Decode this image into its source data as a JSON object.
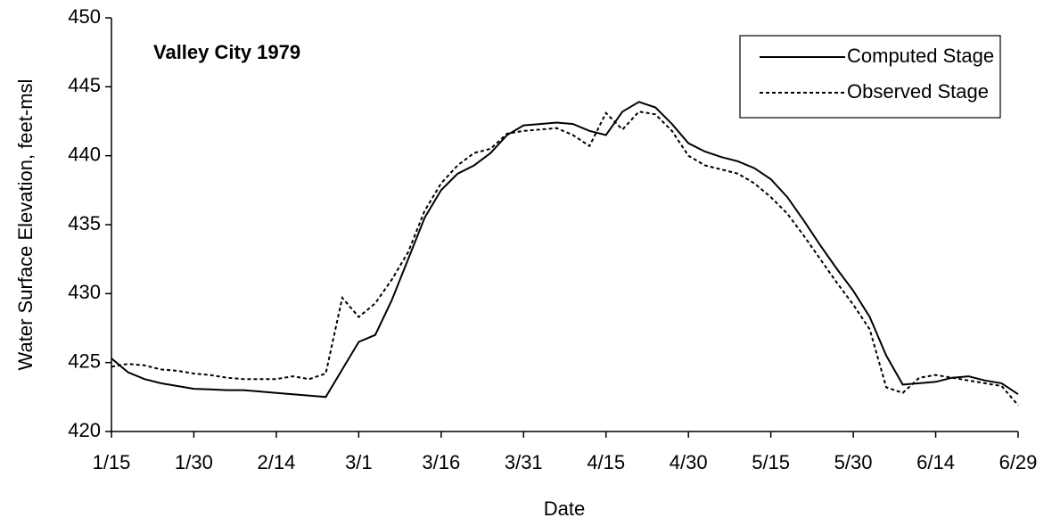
{
  "chart_data": {
    "type": "line",
    "title": "Valley City 1979",
    "x_label": "Date",
    "y_label": "Water Surface Elevation, feet-msl",
    "categories": [
      "1/15",
      null,
      null,
      null,
      null,
      "1/30",
      null,
      null,
      null,
      null,
      "2/14",
      null,
      null,
      null,
      null,
      "3/1",
      null,
      null,
      null,
      null,
      "3/16",
      null,
      null,
      null,
      null,
      "3/31",
      null,
      null,
      null,
      null,
      "4/15",
      null,
      null,
      null,
      null,
      "4/30",
      null,
      null,
      null,
      null,
      "5/15",
      null,
      null,
      null,
      null,
      "5/30",
      null,
      null,
      null,
      null,
      "6/14",
      null,
      null,
      null,
      null,
      "6/29"
    ],
    "series": [
      {
        "name": "Computed Stage",
        "color": "#000000",
        "dash": false,
        "values": [
          425.3,
          424.3,
          423.8,
          423.5,
          423.3,
          423.1,
          423.05,
          423.0,
          423.0,
          422.9,
          422.8,
          422.7,
          422.6,
          422.5,
          424.5,
          426.5,
          427.0,
          429.5,
          432.5,
          435.5,
          437.5,
          438.7,
          439.3,
          440.2,
          441.5,
          442.2,
          442.3,
          442.4,
          442.3,
          441.8,
          441.5,
          443.2,
          443.9,
          443.5,
          442.3,
          440.9,
          440.3,
          439.9,
          439.6,
          439.1,
          438.3,
          437.0,
          435.3,
          433.5,
          431.8,
          430.2,
          428.3,
          425.5,
          423.4,
          423.5,
          423.6,
          423.9,
          424.0,
          423.7,
          423.5,
          422.7
        ]
      },
      {
        "name": "Observed Stage",
        "color": "#000000",
        "dash": true,
        "values": [
          424.7,
          424.9,
          424.8,
          424.5,
          424.4,
          424.2,
          424.1,
          423.9,
          423.8,
          423.8,
          423.8,
          424.0,
          423.8,
          424.2,
          429.7,
          428.3,
          429.3,
          431.0,
          433.0,
          436.0,
          438.0,
          439.3,
          440.2,
          440.5,
          441.6,
          441.8,
          441.9,
          442.0,
          441.5,
          440.7,
          443.1,
          441.9,
          443.2,
          443.0,
          441.8,
          440.0,
          439.3,
          439.0,
          438.7,
          438.0,
          437.0,
          435.8,
          434.2,
          432.5,
          430.8,
          429.2,
          427.4,
          423.2,
          422.8,
          423.9,
          424.1,
          423.9,
          423.7,
          423.5,
          423.3,
          421.9
        ]
      }
    ],
    "ylim": [
      420,
      450
    ],
    "yticks": [
      420,
      425,
      430,
      435,
      440,
      445,
      450
    ],
    "grid": false,
    "legend": "upper right"
  }
}
